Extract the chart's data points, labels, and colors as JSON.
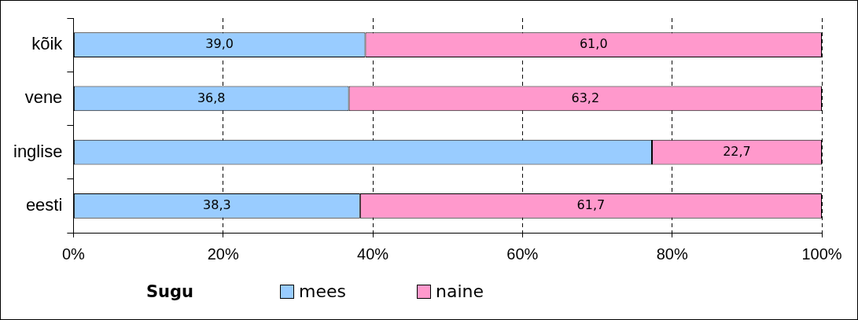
{
  "chart_data": {
    "type": "bar",
    "orientation": "horizontal",
    "stacked": true,
    "categories": [
      "kõik",
      "vene",
      "inglise",
      "eesti"
    ],
    "series": [
      {
        "name": "mees",
        "color": "#99ccff",
        "values": [
          39.0,
          36.8,
          77.3,
          38.3
        ],
        "value_labels": [
          "39,0",
          "36,8",
          null,
          "38,3"
        ]
      },
      {
        "name": "naine",
        "color": "#ff99cc",
        "values": [
          61.0,
          63.2,
          22.7,
          61.7
        ],
        "value_labels": [
          "61,0",
          "63,2",
          "22,7",
          "61,7"
        ]
      }
    ],
    "xlim": [
      0,
      100
    ],
    "xticks": [
      {
        "value": 0,
        "label": "0%"
      },
      {
        "value": 20,
        "label": "20%"
      },
      {
        "value": 40,
        "label": "40%"
      },
      {
        "value": 60,
        "label": "60%"
      },
      {
        "value": 80,
        "label": "80%"
      },
      {
        "value": 100,
        "label": "100%"
      }
    ],
    "grid": "x",
    "line_style": "dashed",
    "legend": "bottom",
    "legend_title": "Sugu"
  }
}
